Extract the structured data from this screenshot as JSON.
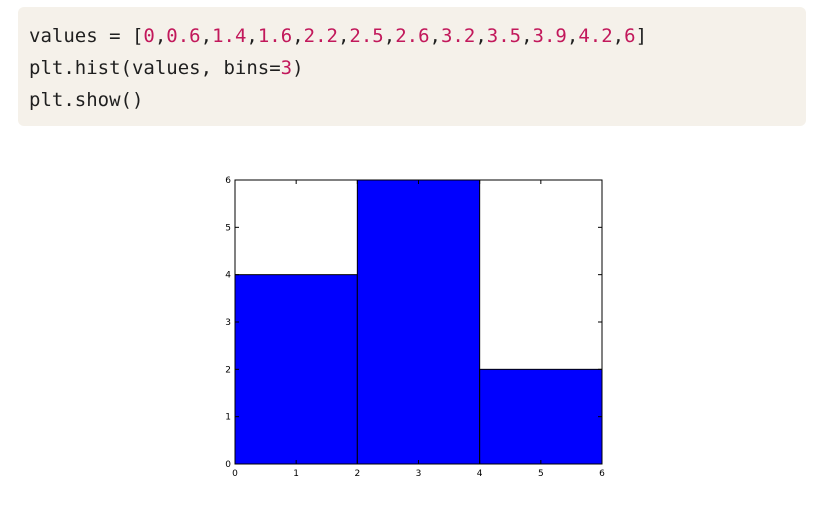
{
  "code": {
    "line1": {
      "prefix": "values = [",
      "values": [
        "0",
        "0.6",
        "1.4",
        "1.6",
        "2.2",
        "2.5",
        "2.6",
        "3.2",
        "3.5",
        "3.9",
        "4.2",
        "6"
      ],
      "suffix": "]"
    },
    "line2": {
      "prefix": "plt.hist(values, bins=",
      "arg": "3",
      "suffix": ")"
    },
    "line3": "plt.show()"
  },
  "colors": {
    "code_background": "#f5f1ea",
    "number": "#c2185b",
    "bar": "#0000ff"
  },
  "chart_data": {
    "type": "bar",
    "title": "",
    "xlabel": "",
    "ylabel": "",
    "bins": [
      [
        0,
        2
      ],
      [
        2,
        4
      ],
      [
        4,
        6
      ]
    ],
    "values": [
      4,
      6,
      2
    ],
    "xlim": [
      0,
      6
    ],
    "ylim": [
      0,
      6
    ],
    "xticks": [
      "0",
      "1",
      "2",
      "3",
      "4",
      "5",
      "6"
    ],
    "yticks": [
      "0",
      "1",
      "2",
      "3",
      "4",
      "5",
      "6"
    ],
    "color": "#0000ff",
    "grid": false
  }
}
